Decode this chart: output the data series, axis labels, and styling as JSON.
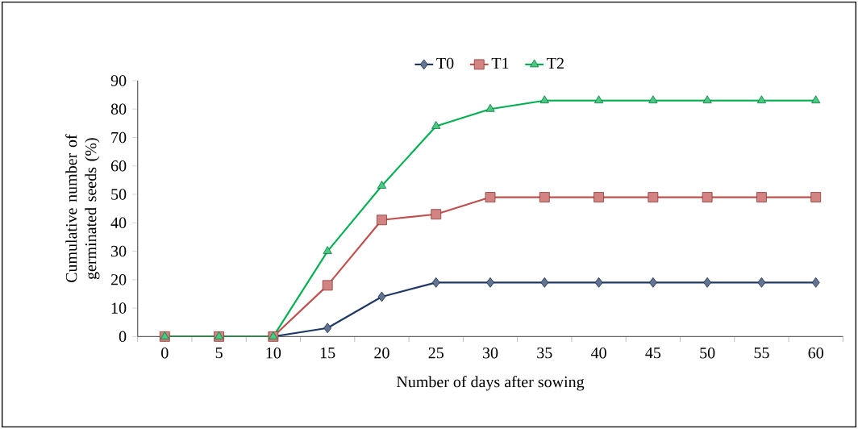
{
  "chart_data": {
    "type": "line",
    "xlabel": "Number of days after sowing",
    "ylabel": "Cumulative number of germinated seeds (%)",
    "categories": [
      "0",
      "5",
      "10",
      "15",
      "20",
      "25",
      "30",
      "35",
      "40",
      "45",
      "50",
      "55",
      "60"
    ],
    "series": [
      {
        "name": "T0",
        "color": "#1f3864",
        "marker": "diamond",
        "values": [
          0,
          0,
          0,
          3,
          14,
          19,
          19,
          19,
          19,
          19,
          19,
          19,
          19
        ]
      },
      {
        "name": "T1",
        "color": "#c0504d",
        "marker": "square",
        "values": [
          0,
          0,
          0,
          18,
          41,
          43,
          49,
          49,
          49,
          49,
          49,
          49,
          49
        ]
      },
      {
        "name": "T2",
        "color": "#00b050",
        "marker": "triangle",
        "values": [
          0,
          0,
          0,
          30,
          53,
          74,
          80,
          83,
          83,
          83,
          83,
          83,
          83
        ]
      }
    ],
    "ylim": [
      0,
      90
    ],
    "yticks": [
      0,
      10,
      20,
      30,
      40,
      50,
      60,
      70,
      80,
      90
    ],
    "grid": false,
    "legend": "top",
    "line_style": "solid"
  }
}
